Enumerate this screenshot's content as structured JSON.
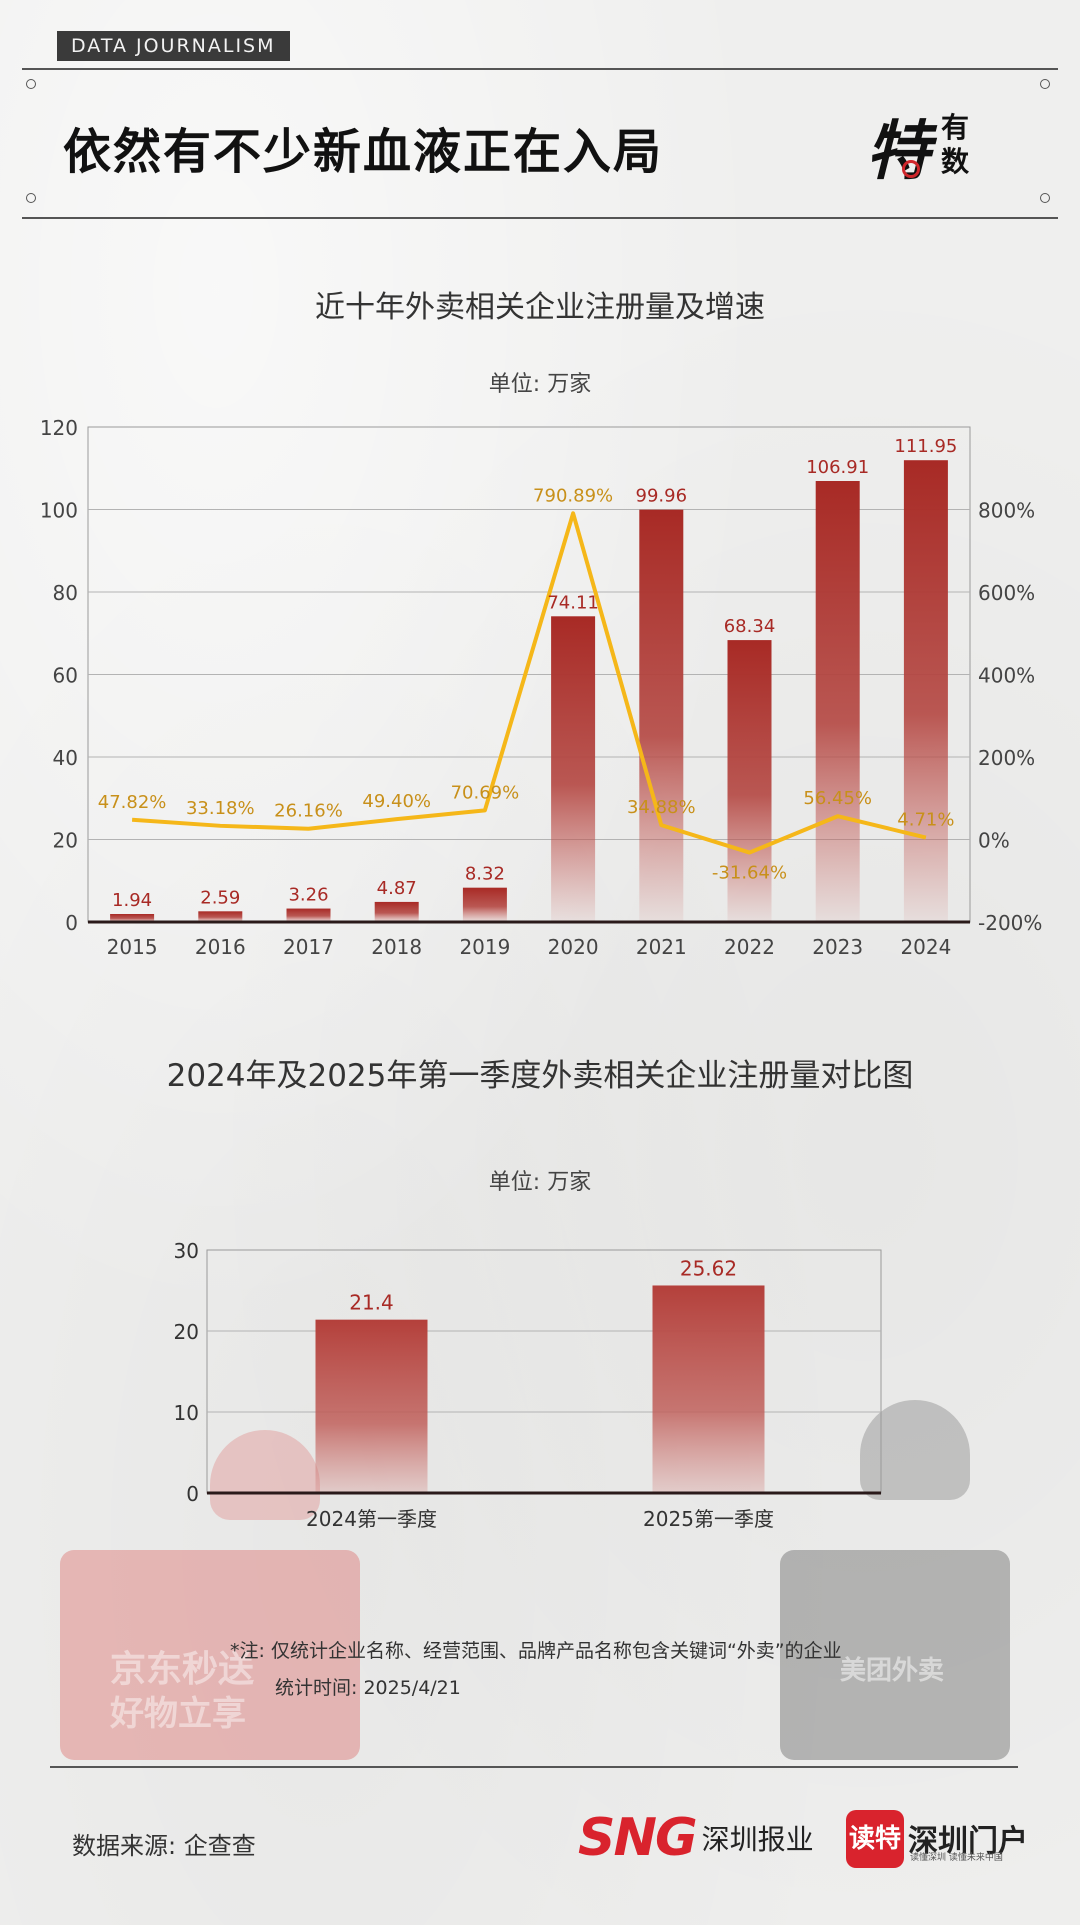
{
  "header": {
    "tag": "DATA JOURNALISM",
    "headline": "依然有不少新血液正在入局",
    "logo_big": "特",
    "logo_small_1": "有",
    "logo_small_2": "数"
  },
  "chart1": {
    "title": "近十年外卖相关企业注册量及增速",
    "unit_label": "单位: 万家"
  },
  "chart2": {
    "title": "2024年及2025年第一季度外卖相关企业注册量对比图",
    "unit_label": "单位: 万家"
  },
  "chart_data": [
    {
      "type": "bar",
      "title": "近十年外卖相关企业注册量及增速",
      "subtitle": "单位: 万家",
      "categories": [
        "2015",
        "2016",
        "2017",
        "2018",
        "2019",
        "2020",
        "2021",
        "2022",
        "2023",
        "2024"
      ],
      "series": [
        {
          "values": [
            1.94,
            2.59,
            3.26,
            4.87,
            8.32,
            74.11,
            99.96,
            68.34,
            106.91,
            111.95
          ],
          "labels": [
            "1.94",
            "2.59",
            "3.26",
            "4.87",
            "8.32",
            "74.11",
            "99.96",
            "68.34",
            "106.91",
            "111.95"
          ],
          "type": "bar",
          "axis": "left",
          "color": "#a82a25"
        },
        {
          "values": [
            47.82,
            33.18,
            26.16,
            49.4,
            70.69,
            790.89,
            34.88,
            -31.64,
            56.45,
            4.71
          ],
          "labels": [
            "47.82%",
            "33.18%",
            "26.16%",
            "49.40%",
            "70.69%",
            "790.89%",
            "34.88%",
            "-31.64%",
            "56.45%",
            "4.71%"
          ],
          "type": "line",
          "axis": "right",
          "color": "#f5b719"
        }
      ],
      "ylim": [
        0,
        120
      ],
      "y_ticks": [
        "0",
        "20",
        "40",
        "60",
        "80",
        "100",
        "120"
      ],
      "y2lim": [
        -200,
        1000
      ],
      "y2_ticks": [
        "-200%",
        "0%",
        "200%",
        "400%",
        "600%",
        "800%"
      ],
      "grid": true
    },
    {
      "type": "bar",
      "title": "2024年及2025年第一季度外卖相关企业注册量对比图",
      "subtitle": "单位: 万家",
      "categories": [
        "2024第一季度",
        "2025第一季度"
      ],
      "values": [
        21.4,
        25.62
      ],
      "labels": [
        "21.4",
        "25.62"
      ],
      "ylim": [
        0,
        30
      ],
      "y_ticks": [
        "0",
        "10",
        "20",
        "30"
      ],
      "grid": true,
      "color": "#a82a25"
    }
  ],
  "background": {
    "left_box_text": "京东秒送",
    "left_box_sub": "好物立享",
    "right_box_text": "美团外卖"
  },
  "notes": {
    "line1": "*注: 仅统计企业名称、经营范围、品牌产品名称包含关键词“外卖”的企业",
    "line2": "统计时间: 2025/4/21"
  },
  "footer": {
    "source": "数据来源: 企查查",
    "sng_mark": "SNG",
    "sng_name": "深圳报业",
    "dute_badge": "读特",
    "dute_name": "深圳门户",
    "dute_slogan": "读懂深圳  读懂未来中国"
  },
  "colors": {
    "bar": "#a82a25",
    "line": "#f5b719",
    "line_label": "#c8901a",
    "brand_red": "#d9232d"
  }
}
